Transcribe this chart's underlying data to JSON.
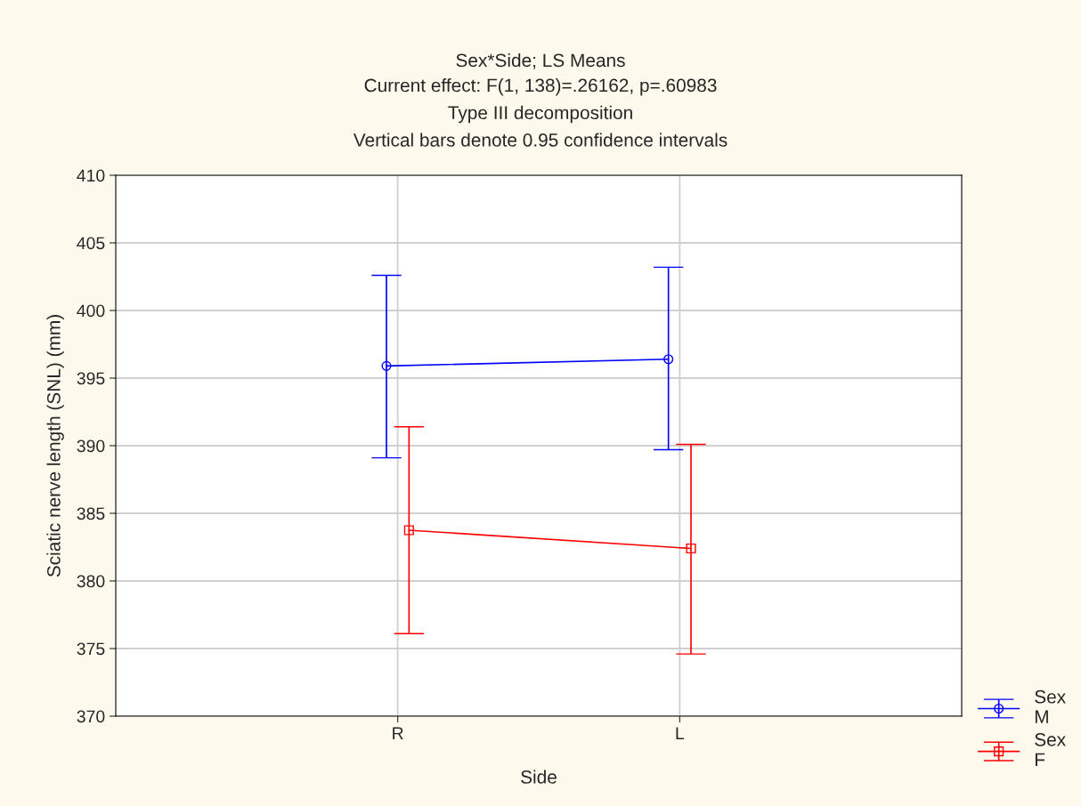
{
  "chart_data": {
    "type": "line",
    "title": "Sex*Side; LS Means",
    "subtitle": "Current effect: F(1, 138)=.26162, p=.60983\nType III decomposition\nVertical bars denote 0.95 confidence intervals",
    "xlabel": "Side",
    "ylabel": "Sciatic nerve length (SNL) (mm)",
    "categories": [
      "R",
      "L"
    ],
    "series": [
      {
        "name": "Sex\nM",
        "color": "#0000ff",
        "marker": "circle",
        "values": [
          395.9,
          396.4
        ],
        "errors": [
          [
            389.1,
            402.6
          ],
          [
            389.7,
            403.2
          ]
        ]
      },
      {
        "name": "Sex\nF",
        "color": "#ff0000",
        "marker": "square",
        "values": [
          383.75,
          382.4
        ],
        "errors": [
          [
            376.1,
            391.4
          ],
          [
            374.6,
            390.1
          ]
        ]
      }
    ],
    "ylim": [
      370,
      410
    ],
    "yticks": [
      370,
      375,
      380,
      385,
      390,
      395,
      400,
      405,
      410
    ],
    "grid": true,
    "legend": "bottom right"
  }
}
